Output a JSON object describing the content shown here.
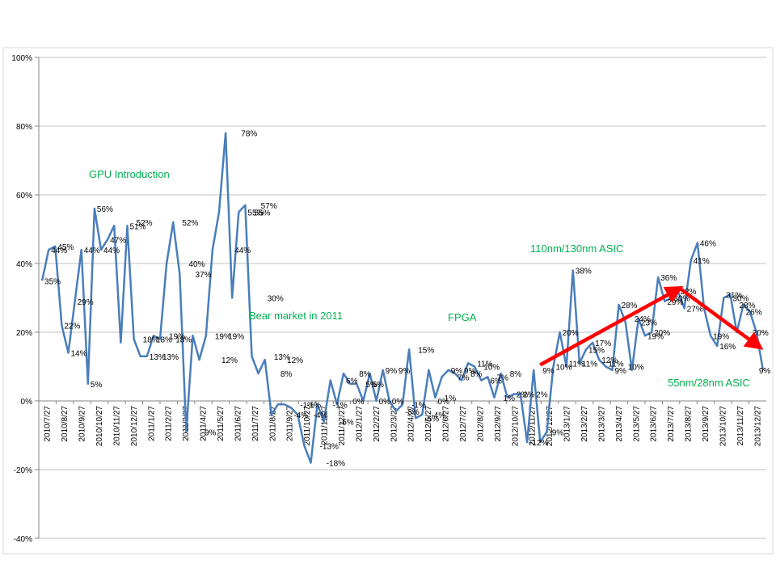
{
  "chart_data": {
    "type": "line",
    "ylim": [
      -40,
      100
    ],
    "y_ticks": [
      "-40%",
      "-20%",
      "0%",
      "20%",
      "40%",
      "60%",
      "80%",
      "100%"
    ],
    "y_tick_values": [
      -40,
      -20,
      0,
      20,
      40,
      60,
      80,
      100
    ],
    "grid": "horizontal",
    "legend": "none",
    "x_ticks": [
      "2010/7/27",
      "2010/8/27",
      "2010/9/27",
      "2010/10/27",
      "2010/11/27",
      "2010/12/27",
      "2011/1/27",
      "2011/2/27",
      "2011/3/27",
      "2011/4/27",
      "2011/5/27",
      "2011/6/27",
      "2011/7/27",
      "2011/8/27",
      "2011/9/27",
      "2011/10/27",
      "2011/11/27",
      "2011/12/27",
      "2012/1/27",
      "2012/2/27",
      "2012/3/27",
      "2012/4/27",
      "2012/5/27",
      "2012/6/27",
      "2012/7/27",
      "2012/8/27",
      "2012/9/27",
      "2012/10/27",
      "2012/11/27",
      "2012/12/27",
      "2013/1/27",
      "2013/2/27",
      "2013/3/27",
      "2013/4/27",
      "2013/5/27",
      "2013/6/27",
      "2013/7/27",
      "2013/8/27",
      "2013/9/27",
      "2013/10/27",
      "2013/11/27",
      "2013/12/27"
    ],
    "series": [
      {
        "values": [
          35,
          44,
          45,
          22,
          14,
          29,
          44,
          5,
          56,
          44,
          47,
          51,
          17,
          51,
          18,
          13,
          13,
          19,
          18,
          40,
          52,
          37,
          -9,
          19,
          12,
          19,
          44,
          55,
          78,
          30,
          55,
          57,
          13,
          8,
          12,
          -4,
          -1,
          -1,
          -2,
          -4,
          -13,
          -18,
          -1,
          -6,
          6,
          -1,
          8,
          5,
          5,
          0,
          8,
          0,
          9,
          0,
          -3,
          -1,
          15,
          -5,
          -4,
          9,
          1,
          7,
          9,
          8,
          6,
          11,
          10,
          6,
          7,
          1,
          8,
          1,
          2,
          2,
          -12,
          9,
          -12,
          -9,
          10,
          20,
          10,
          38,
          11,
          15,
          17,
          12,
          10,
          9,
          28,
          23,
          9,
          24,
          19,
          20,
          36,
          29,
          30,
          32,
          27,
          41,
          46,
          27,
          19,
          16,
          30,
          31,
          20,
          28,
          26,
          20,
          9
        ],
        "color": "#4a7ebb"
      }
    ],
    "data_labels": [
      {
        "text": "35%",
        "i": 0,
        "v": 35
      },
      {
        "text": "44%",
        "i": 1,
        "v": 44
      },
      {
        "text": "45%",
        "i": 2,
        "v": 45
      },
      {
        "text": "22%",
        "i": 3,
        "v": 22
      },
      {
        "text": "14%",
        "i": 4,
        "v": 14
      },
      {
        "text": "29%",
        "i": 5,
        "v": 29
      },
      {
        "text": "44%",
        "i": 6,
        "v": 44
      },
      {
        "text": "5%",
        "i": 7,
        "v": 5
      },
      {
        "text": "56%",
        "i": 8,
        "v": 56
      },
      {
        "text": "44%",
        "i": 9,
        "v": 44
      },
      {
        "text": "47%",
        "i": 10,
        "v": 47
      },
      {
        "text": "51%",
        "i": 13,
        "v": 51
      },
      {
        "text": "52%",
        "i": 14,
        "v": 52
      },
      {
        "text": "18%",
        "i": 15,
        "v": 18
      },
      {
        "text": "18%",
        "i": 17,
        "v": 18
      },
      {
        "text": "13%",
        "i": 16,
        "v": 13
      },
      {
        "text": "13%",
        "i": 18,
        "v": 13
      },
      {
        "text": "19%",
        "i": 19,
        "v": 19
      },
      {
        "text": "18%",
        "i": 20,
        "v": 18
      },
      {
        "text": "52%",
        "i": 21,
        "v": 52
      },
      {
        "text": "40%",
        "i": 22,
        "v": 40
      },
      {
        "text": "37%",
        "i": 23,
        "v": 37
      },
      {
        "text": "-9%",
        "i": 24,
        "v": -9
      },
      {
        "text": "19%",
        "i": 26,
        "v": 19
      },
      {
        "text": "12%",
        "i": 27,
        "v": 12
      },
      {
        "text": "19%",
        "i": 28,
        "v": 19
      },
      {
        "text": "44%",
        "i": 29,
        "v": 44
      },
      {
        "text": "78%",
        "i": 30,
        "v": 78
      },
      {
        "text": "55%",
        "i": 31,
        "v": 55
      },
      {
        "text": "57%",
        "i": 33,
        "v": 57
      },
      {
        "text": "55%",
        "i": 32,
        "v": 55
      },
      {
        "text": "30%",
        "i": 34,
        "v": 30
      },
      {
        "text": "13%",
        "i": 35,
        "v": 13
      },
      {
        "text": "8%",
        "i": 36,
        "v": 8
      },
      {
        "text": "12%",
        "i": 37,
        "v": 12
      },
      {
        "text": "-4%",
        "i": 38,
        "v": -4
      },
      {
        "text": "-1%",
        "i": 39,
        "v": -1
      },
      {
        "text": "-1%",
        "i": 40,
        "v": -1
      },
      {
        "text": "-4%",
        "i": 41,
        "v": -4
      },
      {
        "text": "-13%",
        "i": 42,
        "v": -13
      },
      {
        "text": "-18%",
        "i": 43,
        "v": -18
      },
      {
        "text": "-1%",
        "i": 44,
        "v": -1
      },
      {
        "text": "-6%",
        "i": 45,
        "v": -6
      },
      {
        "text": "6%",
        "i": 46,
        "v": 6
      },
      {
        "text": "0%",
        "i": 47,
        "v": 0
      },
      {
        "text": "8%",
        "i": 48,
        "v": 8
      },
      {
        "text": "5%",
        "i": 49,
        "v": 5
      },
      {
        "text": "5%",
        "i": 50,
        "v": 5
      },
      {
        "text": "0%",
        "i": 51,
        "v": 0
      },
      {
        "text": "9%",
        "i": 52,
        "v": 9
      },
      {
        "text": "0%",
        "i": 53,
        "v": 0
      },
      {
        "text": "9%",
        "i": 54,
        "v": 9
      },
      {
        "text": "-3%",
        "i": 55,
        "v": -3
      },
      {
        "text": "-1%",
        "i": 56,
        "v": -1
      },
      {
        "text": "15%",
        "i": 57,
        "v": 15
      },
      {
        "text": "-5%",
        "i": 58,
        "v": -5
      },
      {
        "text": "-4%",
        "i": 59,
        "v": -4
      },
      {
        "text": "0%",
        "i": 60,
        "v": 0
      },
      {
        "text": "1%",
        "i": 61,
        "v": 1
      },
      {
        "text": "9%",
        "i": 62,
        "v": 9
      },
      {
        "text": "7%",
        "i": 63,
        "v": 7
      },
      {
        "text": "9%",
        "i": 64,
        "v": 9
      },
      {
        "text": "8%",
        "i": 65,
        "v": 8
      },
      {
        "text": "11%",
        "i": 66,
        "v": 11
      },
      {
        "text": "10%",
        "i": 67,
        "v": 10
      },
      {
        "text": "6%",
        "i": 68,
        "v": 6
      },
      {
        "text": "7%",
        "i": 69,
        "v": 7
      },
      {
        "text": "1%",
        "i": 70,
        "v": 1
      },
      {
        "text": "8%",
        "i": 71,
        "v": 8
      },
      {
        "text": "2%",
        "i": 72,
        "v": 2
      },
      {
        "text": "2%",
        "i": 73,
        "v": 2
      },
      {
        "text": "-12%",
        "i": 74,
        "v": -12
      },
      {
        "text": "2%",
        "i": 75,
        "v": 2
      },
      {
        "text": "9%",
        "i": 76,
        "v": 9
      },
      {
        "text": "-9%",
        "i": 77,
        "v": -9
      },
      {
        "text": "10%",
        "i": 78,
        "v": 10
      },
      {
        "text": "20%",
        "i": 79,
        "v": 20
      },
      {
        "text": "11%",
        "i": 80,
        "v": 11
      },
      {
        "text": "38%",
        "i": 81,
        "v": 38
      },
      {
        "text": "11%",
        "i": 82,
        "v": 11
      },
      {
        "text": "15%",
        "i": 83,
        "v": 15
      },
      {
        "text": "17%",
        "i": 84,
        "v": 17
      },
      {
        "text": "12%",
        "i": 85,
        "v": 12
      },
      {
        "text": "11%",
        "i": 86,
        "v": 11
      },
      {
        "text": "9%",
        "i": 87,
        "v": 9
      },
      {
        "text": "28%",
        "i": 88,
        "v": 28
      },
      {
        "text": "10%",
        "i": 89,
        "v": 10
      },
      {
        "text": "24%",
        "i": 90,
        "v": 24
      },
      {
        "text": "23%",
        "i": 91,
        "v": 23
      },
      {
        "text": "19%",
        "i": 92,
        "v": 19
      },
      {
        "text": "20%",
        "i": 93,
        "v": 20
      },
      {
        "text": "36%",
        "i": 94,
        "v": 36
      },
      {
        "text": "29%",
        "i": 95,
        "v": 29
      },
      {
        "text": "30%",
        "i": 96,
        "v": 30
      },
      {
        "text": "32%",
        "i": 97,
        "v": 32
      },
      {
        "text": "27%",
        "i": 98,
        "v": 27
      },
      {
        "text": "41%",
        "i": 99,
        "v": 41
      },
      {
        "text": "46%",
        "i": 100,
        "v": 46
      },
      {
        "text": "19%",
        "i": 102,
        "v": 19
      },
      {
        "text": "16%",
        "i": 103,
        "v": 16
      },
      {
        "text": "31%",
        "i": 104,
        "v": 31
      },
      {
        "text": "30%",
        "i": 105,
        "v": 30
      },
      {
        "text": "28%",
        "i": 106,
        "v": 28
      },
      {
        "text": "26%",
        "i": 107,
        "v": 26
      },
      {
        "text": "20%",
        "i": 108,
        "v": 20
      },
      {
        "text": "9%",
        "i": 109,
        "v": 9
      }
    ],
    "annotations": [
      {
        "text": "GPU Introduction",
        "color": "#00b050"
      },
      {
        "text": "Bear market  in 2011",
        "color": "#00b050"
      },
      {
        "text": "FPGA",
        "color": "#00b050"
      },
      {
        "text": "110nm/130nm  ASIC",
        "color": "#00b050"
      },
      {
        "text": "55nm/28nm  ASIC",
        "color": "#00b050"
      }
    ],
    "arrows_color": "#ff0000"
  }
}
